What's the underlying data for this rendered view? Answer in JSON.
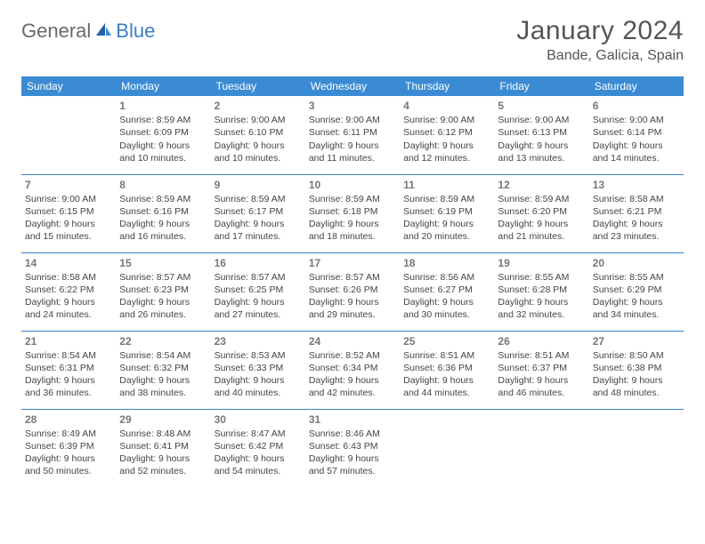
{
  "logo": {
    "part1": "General",
    "part2": "Blue"
  },
  "title": "January 2024",
  "subtitle": "Bande, Galicia, Spain",
  "dayHeaders": [
    "Sunday",
    "Monday",
    "Tuesday",
    "Wednesday",
    "Thursday",
    "Friday",
    "Saturday"
  ],
  "colors": {
    "headerBg": "#3b8bd4",
    "headerText": "#ffffff",
    "rowBorder": "#3b7fc4",
    "textColor": "#444444",
    "titleColor": "#555555",
    "logoGray": "#6a6a6a",
    "logoBlue": "#3b7fc4",
    "background": "#ffffff"
  },
  "weeks": [
    [
      null,
      {
        "d": "1",
        "sr": "8:59 AM",
        "ss": "6:09 PM",
        "dl": "9 hours and 10 minutes."
      },
      {
        "d": "2",
        "sr": "9:00 AM",
        "ss": "6:10 PM",
        "dl": "9 hours and 10 minutes."
      },
      {
        "d": "3",
        "sr": "9:00 AM",
        "ss": "6:11 PM",
        "dl": "9 hours and 11 minutes."
      },
      {
        "d": "4",
        "sr": "9:00 AM",
        "ss": "6:12 PM",
        "dl": "9 hours and 12 minutes."
      },
      {
        "d": "5",
        "sr": "9:00 AM",
        "ss": "6:13 PM",
        "dl": "9 hours and 13 minutes."
      },
      {
        "d": "6",
        "sr": "9:00 AM",
        "ss": "6:14 PM",
        "dl": "9 hours and 14 minutes."
      }
    ],
    [
      {
        "d": "7",
        "sr": "9:00 AM",
        "ss": "6:15 PM",
        "dl": "9 hours and 15 minutes."
      },
      {
        "d": "8",
        "sr": "8:59 AM",
        "ss": "6:16 PM",
        "dl": "9 hours and 16 minutes."
      },
      {
        "d": "9",
        "sr": "8:59 AM",
        "ss": "6:17 PM",
        "dl": "9 hours and 17 minutes."
      },
      {
        "d": "10",
        "sr": "8:59 AM",
        "ss": "6:18 PM",
        "dl": "9 hours and 18 minutes."
      },
      {
        "d": "11",
        "sr": "8:59 AM",
        "ss": "6:19 PM",
        "dl": "9 hours and 20 minutes."
      },
      {
        "d": "12",
        "sr": "8:59 AM",
        "ss": "6:20 PM",
        "dl": "9 hours and 21 minutes."
      },
      {
        "d": "13",
        "sr": "8:58 AM",
        "ss": "6:21 PM",
        "dl": "9 hours and 23 minutes."
      }
    ],
    [
      {
        "d": "14",
        "sr": "8:58 AM",
        "ss": "6:22 PM",
        "dl": "9 hours and 24 minutes."
      },
      {
        "d": "15",
        "sr": "8:57 AM",
        "ss": "6:23 PM",
        "dl": "9 hours and 26 minutes."
      },
      {
        "d": "16",
        "sr": "8:57 AM",
        "ss": "6:25 PM",
        "dl": "9 hours and 27 minutes."
      },
      {
        "d": "17",
        "sr": "8:57 AM",
        "ss": "6:26 PM",
        "dl": "9 hours and 29 minutes."
      },
      {
        "d": "18",
        "sr": "8:56 AM",
        "ss": "6:27 PM",
        "dl": "9 hours and 30 minutes."
      },
      {
        "d": "19",
        "sr": "8:55 AM",
        "ss": "6:28 PM",
        "dl": "9 hours and 32 minutes."
      },
      {
        "d": "20",
        "sr": "8:55 AM",
        "ss": "6:29 PM",
        "dl": "9 hours and 34 minutes."
      }
    ],
    [
      {
        "d": "21",
        "sr": "8:54 AM",
        "ss": "6:31 PM",
        "dl": "9 hours and 36 minutes."
      },
      {
        "d": "22",
        "sr": "8:54 AM",
        "ss": "6:32 PM",
        "dl": "9 hours and 38 minutes."
      },
      {
        "d": "23",
        "sr": "8:53 AM",
        "ss": "6:33 PM",
        "dl": "9 hours and 40 minutes."
      },
      {
        "d": "24",
        "sr": "8:52 AM",
        "ss": "6:34 PM",
        "dl": "9 hours and 42 minutes."
      },
      {
        "d": "25",
        "sr": "8:51 AM",
        "ss": "6:36 PM",
        "dl": "9 hours and 44 minutes."
      },
      {
        "d": "26",
        "sr": "8:51 AM",
        "ss": "6:37 PM",
        "dl": "9 hours and 46 minutes."
      },
      {
        "d": "27",
        "sr": "8:50 AM",
        "ss": "6:38 PM",
        "dl": "9 hours and 48 minutes."
      }
    ],
    [
      {
        "d": "28",
        "sr": "8:49 AM",
        "ss": "6:39 PM",
        "dl": "9 hours and 50 minutes."
      },
      {
        "d": "29",
        "sr": "8:48 AM",
        "ss": "6:41 PM",
        "dl": "9 hours and 52 minutes."
      },
      {
        "d": "30",
        "sr": "8:47 AM",
        "ss": "6:42 PM",
        "dl": "9 hours and 54 minutes."
      },
      {
        "d": "31",
        "sr": "8:46 AM",
        "ss": "6:43 PM",
        "dl": "9 hours and 57 minutes."
      },
      null,
      null,
      null
    ]
  ],
  "labels": {
    "sunrise": "Sunrise:",
    "sunset": "Sunset:",
    "daylight": "Daylight:"
  }
}
